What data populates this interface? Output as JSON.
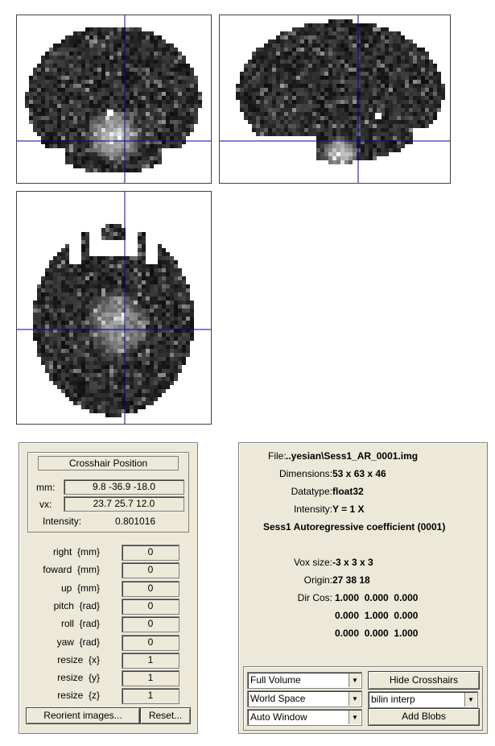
{
  "colors": {
    "panel_bg": "#ece9d8",
    "crosshair": "#0000a0",
    "view_bg": "#ffffff"
  },
  "views": {
    "coronal": {
      "name": "coronal-view"
    },
    "sagittal": {
      "name": "sagittal-view"
    },
    "axial": {
      "name": "axial-view"
    }
  },
  "crosshair_panel": {
    "title": "Crosshair Position",
    "mm_label": "mm:",
    "mm_value": "9.8 -36.9 -18.0",
    "vx_label": "vx:",
    "vx_value": "23.7 25.7 12.0",
    "intensity_label": "Intensity:",
    "intensity_value": "0.801016"
  },
  "reorient": {
    "fields": [
      {
        "label": "right  {mm}",
        "value": "0"
      },
      {
        "label": "foward  {mm}",
        "value": "0"
      },
      {
        "label": "up  {mm}",
        "value": "0"
      },
      {
        "label": "pitch  {rad}",
        "value": "0"
      },
      {
        "label": "roll  {rad}",
        "value": "0"
      },
      {
        "label": "yaw  {rad}",
        "value": "0"
      },
      {
        "label": "resize  {x}",
        "value": "1"
      },
      {
        "label": "resize  {y}",
        "value": "1"
      },
      {
        "label": "resize  {z}",
        "value": "1"
      }
    ],
    "reorient_button": "Reorient images...",
    "reset_button": "Reset..."
  },
  "file_info": {
    "file_label": "File:",
    "file_value": "..yesian\\Sess1_AR_0001.img",
    "dims_label": "Dimensions:",
    "dims_value": "53 x 63 x 46",
    "dtype_label": "Datatype:",
    "dtype_value": "float32",
    "intensity_label": "Intensity:",
    "intensity_value": "Y = 1 X",
    "description": "Sess1 Autoregressive coefficient (0001)",
    "voxsize_label": "Vox size:",
    "voxsize_value": "-3 x 3 x 3",
    "origin_label": "Origin:",
    "origin_value": "27 38 18",
    "dircos_label": "Dir Cos:",
    "dircos_rows": [
      "1.000  0.000  0.000",
      "0.000  1.000  0.000",
      "0.000  0.000  1.000"
    ]
  },
  "controls": {
    "volume_select": "Full Volume",
    "space_select": "World Space",
    "window_select": "Auto Window",
    "hide_crosshairs": "Hide Crosshairs",
    "interp_select": "bilin interp",
    "add_blobs": "Add Blobs"
  }
}
